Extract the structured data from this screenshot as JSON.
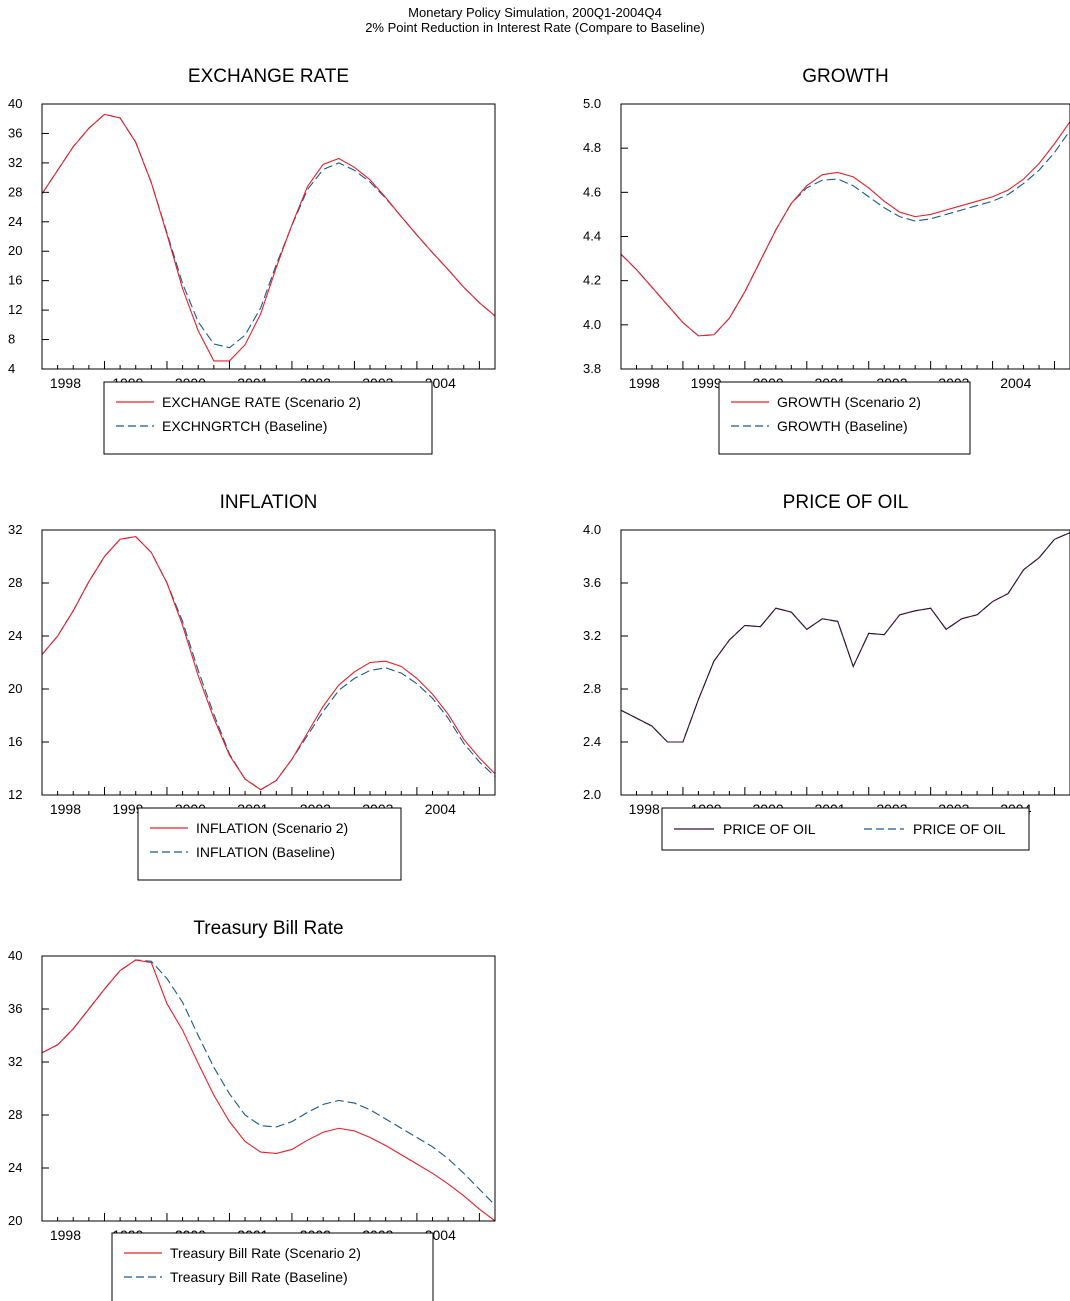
{
  "header": {
    "title": "Monetary Policy Simulation, 200Q1-2004Q4",
    "subtitle": "2% Point Reduction in Interest Rate (Compare to Baseline)"
  },
  "colors": {
    "scenario": "#e8202a",
    "baseline": "#1a5a8a",
    "oil": "#3a1030",
    "axis": "#000000"
  },
  "chart_data": [
    {
      "type": "line",
      "title": "EXCHANGE RATE",
      "xlabel": "",
      "ylabel": "",
      "xlim": [
        1997.75,
        2005.0
      ],
      "ylim": [
        4,
        40
      ],
      "yticks": [
        4,
        8,
        12,
        16,
        20,
        24,
        28,
        32,
        36,
        40
      ],
      "ytick_labels": [
        "4",
        "8",
        "12",
        "16",
        "20",
        "24",
        "28",
        "32",
        "36",
        "40"
      ],
      "year_labels": [
        "1998",
        "1999",
        "2000",
        "2001",
        "2002",
        "2003",
        "2004"
      ],
      "legend_layout": "stacked",
      "x": [
        1997.75,
        1998.0,
        1998.25,
        1998.5,
        1998.75,
        1999.0,
        1999.25,
        1999.5,
        1999.75,
        2000.0,
        2000.25,
        2000.5,
        2000.75,
        2001.0,
        2001.25,
        2001.5,
        2001.75,
        2002.0,
        2002.25,
        2002.5,
        2002.75,
        2003.0,
        2003.25,
        2003.5,
        2003.75,
        2004.0,
        2004.25,
        2004.5,
        2004.75,
        2005.0
      ],
      "series": [
        {
          "name": "EXCHANGE RATE (Scenario 2)",
          "style": "solid",
          "color_key": "scenario",
          "values": [
            27.8,
            31,
            34.2,
            36.7,
            38.6,
            38.1,
            34.8,
            29.3,
            22.3,
            14.9,
            9.2,
            5.1,
            5.1,
            7.3,
            11.5,
            17.8,
            23.6,
            28.8,
            31.8,
            32.6,
            31.4,
            29.7,
            27.3,
            24.7,
            22.2,
            19.8,
            17.5,
            15.1,
            13,
            11.2
          ]
        },
        {
          "name": "EXCHNGRTCH (Baseline)",
          "style": "dashed",
          "color_key": "baseline",
          "values": [
            27.8,
            31,
            34.2,
            36.7,
            38.6,
            38.1,
            34.8,
            29.3,
            22.5,
            15.6,
            10.4,
            7.4,
            6.9,
            8.6,
            12.3,
            18.2,
            23.5,
            28.4,
            31.1,
            32,
            31,
            29.4,
            27.2,
            24.7,
            22.2,
            19.8,
            17.5,
            15.1,
            13,
            11.2
          ]
        }
      ]
    },
    {
      "type": "line",
      "title": "GROWTH",
      "xlabel": "",
      "ylabel": "",
      "xlim": [
        1997.75,
        2005.0
      ],
      "ylim": [
        3.8,
        5.0
      ],
      "yticks": [
        3.8,
        4.0,
        4.2,
        4.4,
        4.6,
        4.8,
        5.0
      ],
      "ytick_labels": [
        "3.8",
        "4.0",
        "4.2",
        "4.4",
        "4.6",
        "4.8",
        "5.0"
      ],
      "year_labels": [
        "1998",
        "1999",
        "2000",
        "2001",
        "2002",
        "2003",
        "2004"
      ],
      "legend_layout": "stacked",
      "x": [
        1997.75,
        1998.0,
        1998.25,
        1998.5,
        1998.75,
        1999.0,
        1999.25,
        1999.5,
        1999.75,
        2000.0,
        2000.25,
        2000.5,
        2000.75,
        2001.0,
        2001.25,
        2001.5,
        2001.75,
        2002.0,
        2002.25,
        2002.5,
        2002.75,
        2003.0,
        2003.25,
        2003.5,
        2003.75,
        2004.0,
        2004.25,
        2004.5,
        2004.75,
        2005.0
      ],
      "series": [
        {
          "name": "GROWTH (Scenario 2)",
          "style": "solid",
          "color_key": "scenario",
          "values": [
            4.32,
            4.25,
            4.17,
            4.09,
            4.01,
            3.95,
            3.955,
            4.03,
            4.15,
            4.29,
            4.43,
            4.55,
            4.63,
            4.68,
            4.69,
            4.67,
            4.62,
            4.56,
            4.51,
            4.49,
            4.5,
            4.52,
            4.54,
            4.56,
            4.58,
            4.61,
            4.66,
            4.73,
            4.82,
            4.92
          ]
        },
        {
          "name": "GROWTH (Baseline)",
          "style": "dashed",
          "color_key": "baseline",
          "values": [
            4.32,
            4.25,
            4.17,
            4.09,
            4.01,
            3.95,
            3.955,
            4.03,
            4.15,
            4.29,
            4.43,
            4.55,
            4.62,
            4.655,
            4.66,
            4.63,
            4.58,
            4.53,
            4.49,
            4.47,
            4.48,
            4.5,
            4.52,
            4.54,
            4.56,
            4.59,
            4.64,
            4.7,
            4.78,
            4.88
          ]
        }
      ]
    },
    {
      "type": "line",
      "title": "INFLATION",
      "xlabel": "",
      "ylabel": "",
      "xlim": [
        1997.75,
        2005.0
      ],
      "ylim": [
        12,
        32
      ],
      "yticks": [
        12,
        16,
        20,
        24,
        28,
        32
      ],
      "ytick_labels": [
        "12",
        "16",
        "20",
        "24",
        "28",
        "32"
      ],
      "year_labels": [
        "1998",
        "1999",
        "2000",
        "2001",
        "2002",
        "2003",
        "2004"
      ],
      "legend_layout": "stacked",
      "x": [
        1997.75,
        1998.0,
        1998.25,
        1998.5,
        1998.75,
        1999.0,
        1999.25,
        1999.5,
        1999.75,
        2000.0,
        2000.25,
        2000.5,
        2000.75,
        2001.0,
        2001.25,
        2001.5,
        2001.75,
        2002.0,
        2002.25,
        2002.5,
        2002.75,
        2003.0,
        2003.25,
        2003.5,
        2003.75,
        2004.0,
        2004.25,
        2004.5,
        2004.75,
        2005.0
      ],
      "series": [
        {
          "name": "INFLATION (Scenario 2)",
          "style": "solid",
          "color_key": "scenario",
          "values": [
            22.6,
            24,
            25.9,
            28.1,
            30,
            31.3,
            31.5,
            30.3,
            28,
            24.8,
            21,
            17.8,
            15,
            13.2,
            12.4,
            13.1,
            14.7,
            16.7,
            18.7,
            20.3,
            21.3,
            22,
            22.1,
            21.7,
            20.8,
            19.6,
            18.1,
            16.2,
            14.8,
            13.6
          ]
        },
        {
          "name": "INFLATION (Baseline)",
          "style": "dashed",
          "color_key": "baseline",
          "values": [
            22.6,
            24,
            25.9,
            28.1,
            30,
            31.3,
            31.5,
            30.3,
            28,
            25.1,
            21.4,
            18.1,
            15.1,
            13.2,
            12.4,
            13.1,
            14.7,
            16.5,
            18.3,
            19.9,
            20.8,
            21.4,
            21.6,
            21.2,
            20.4,
            19.3,
            17.8,
            15.9,
            14.5,
            13.4
          ]
        }
      ]
    },
    {
      "type": "line",
      "title": "PRICE OF OIL",
      "xlabel": "",
      "ylabel": "",
      "xlim": [
        1997.75,
        2005.0
      ],
      "ylim": [
        2.0,
        4.0
      ],
      "yticks": [
        2.0,
        2.4,
        2.8,
        3.2,
        3.6,
        4.0
      ],
      "ytick_labels": [
        "2.0",
        "2.4",
        "2.8",
        "3.2",
        "3.6",
        "4.0"
      ],
      "year_labels": [
        "1998",
        "1999",
        "2000",
        "2001",
        "2002",
        "2003",
        "2004"
      ],
      "legend_layout": "inline",
      "x": [
        1997.75,
        1998.0,
        1998.25,
        1998.5,
        1998.75,
        1999.0,
        1999.25,
        1999.5,
        1999.75,
        2000.0,
        2000.25,
        2000.5,
        2000.75,
        2001.0,
        2001.25,
        2001.5,
        2001.75,
        2002.0,
        2002.25,
        2002.5,
        2002.75,
        2003.0,
        2003.25,
        2003.5,
        2003.75,
        2004.0,
        2004.25,
        2004.5,
        2004.75,
        2005.0
      ],
      "series": [
        {
          "name": "PRICE OF OIL",
          "style": "solid",
          "color_key": "oil",
          "values": [
            2.64,
            2.58,
            2.52,
            2.4,
            2.4,
            2.72,
            3.01,
            3.17,
            3.28,
            3.27,
            3.41,
            3.38,
            3.25,
            3.33,
            3.31,
            2.97,
            3.22,
            3.21,
            3.36,
            3.39,
            3.41,
            3.25,
            3.33,
            3.36,
            3.46,
            3.52,
            3.7,
            3.79,
            3.93,
            3.98
          ]
        },
        {
          "name": "PRICE OF OIL",
          "style": "dashed",
          "color_key": "baseline",
          "values": [
            2.64,
            2.58,
            2.52,
            2.4,
            2.4,
            2.72,
            3.01,
            3.17,
            3.28,
            3.27,
            3.41,
            3.38,
            3.25,
            3.33,
            3.31,
            2.97,
            3.22,
            3.21,
            3.36,
            3.39,
            3.41,
            3.25,
            3.33,
            3.36,
            3.46,
            3.52,
            3.7,
            3.79,
            3.93,
            3.98
          ]
        }
      ]
    },
    {
      "type": "line",
      "title": "Treasury Bill Rate",
      "xlabel": "",
      "ylabel": "",
      "xlim": [
        1997.75,
        2005.0
      ],
      "ylim": [
        20,
        40
      ],
      "yticks": [
        20,
        24,
        28,
        32,
        36,
        40
      ],
      "ytick_labels": [
        "20",
        "24",
        "28",
        "32",
        "36",
        "40"
      ],
      "year_labels": [
        "1998",
        "1999",
        "2000",
        "2001",
        "2002",
        "2003",
        "2004"
      ],
      "legend_layout": "stacked",
      "x": [
        1997.75,
        1998.0,
        1998.25,
        1998.5,
        1998.75,
        1999.0,
        1999.25,
        1999.5,
        1999.75,
        2000.0,
        2000.25,
        2000.5,
        2000.75,
        2001.0,
        2001.25,
        2001.5,
        2001.75,
        2002.0,
        2002.25,
        2002.5,
        2002.75,
        2003.0,
        2003.25,
        2003.5,
        2003.75,
        2004.0,
        2004.25,
        2004.5,
        2004.75,
        2005.0
      ],
      "series": [
        {
          "name": "Treasury Bill Rate (Scenario 2)",
          "style": "solid",
          "color_key": "scenario",
          "values": [
            32.7,
            33.3,
            34.5,
            36,
            37.5,
            38.9,
            39.7,
            39.5,
            36.4,
            34.4,
            31.9,
            29.5,
            27.5,
            26,
            25.2,
            25.1,
            25.4,
            26.1,
            26.7,
            27,
            26.8,
            26.3,
            25.7,
            25,
            24.3,
            23.6,
            22.8,
            21.9,
            20.9,
            20
          ]
        },
        {
          "name": "Treasury Bill Rate (Baseline)",
          "style": "dashed",
          "color_key": "baseline",
          "values": [
            32.7,
            33.3,
            34.5,
            36,
            37.5,
            38.9,
            39.7,
            39.6,
            38.3,
            36.5,
            34,
            31.6,
            29.6,
            28,
            27.2,
            27.1,
            27.5,
            28.2,
            28.8,
            29.1,
            28.9,
            28.4,
            27.7,
            27,
            26.3,
            25.6,
            24.7,
            23.6,
            22.4,
            21.2
          ]
        }
      ]
    }
  ]
}
